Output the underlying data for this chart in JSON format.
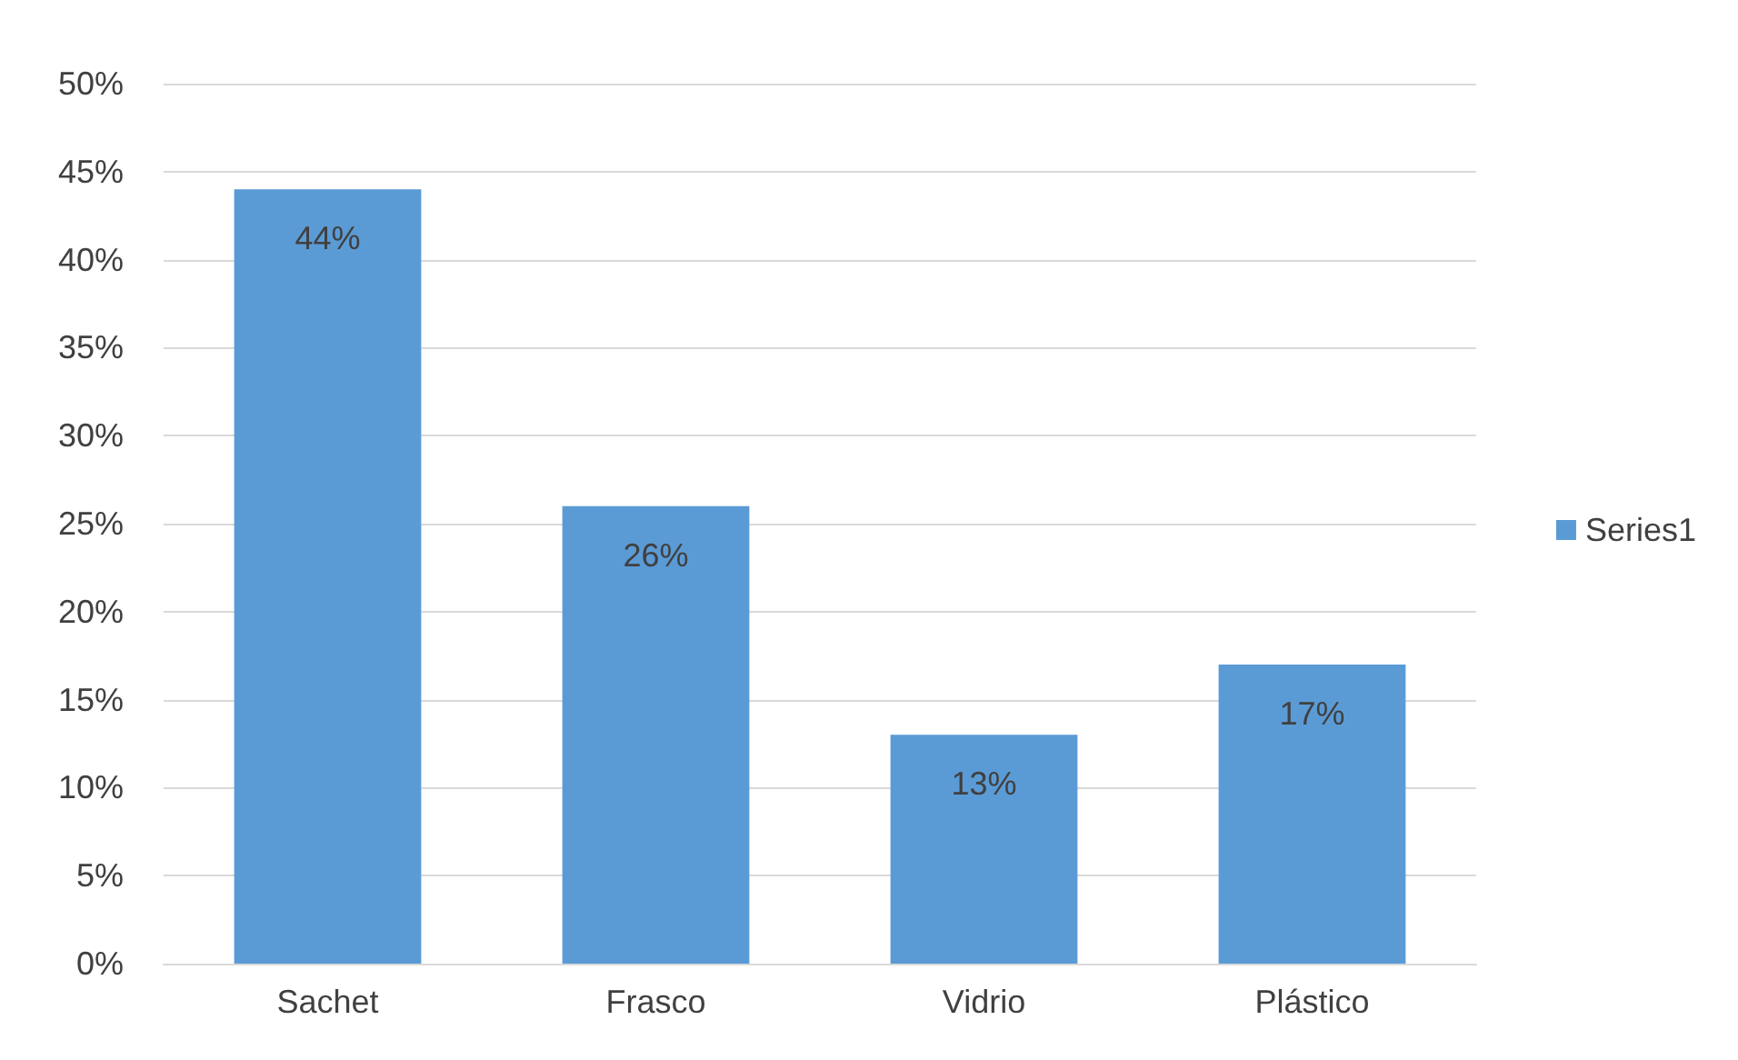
{
  "chart_data": {
    "type": "bar",
    "categories": [
      "Sachet",
      "Frasco",
      "Vidrio",
      "Plástico"
    ],
    "series": [
      {
        "name": "Series1",
        "color": "#5b9bd5",
        "values": [
          44,
          26,
          13,
          17
        ],
        "value_labels": [
          "44%",
          "26%",
          "13%",
          "17%"
        ]
      }
    ],
    "ylim": [
      0,
      50
    ],
    "yticks": [
      {
        "value": 0,
        "label": "0%"
      },
      {
        "value": 5,
        "label": "5%"
      },
      {
        "value": 10,
        "label": "10%"
      },
      {
        "value": 15,
        "label": "15%"
      },
      {
        "value": 20,
        "label": "20%"
      },
      {
        "value": 25,
        "label": "25%"
      },
      {
        "value": 30,
        "label": "30%"
      },
      {
        "value": 35,
        "label": "35%"
      },
      {
        "value": 40,
        "label": "40%"
      },
      {
        "value": 45,
        "label": "45%"
      },
      {
        "value": 50,
        "label": "50%"
      }
    ],
    "grid": "y",
    "legend": "right"
  }
}
